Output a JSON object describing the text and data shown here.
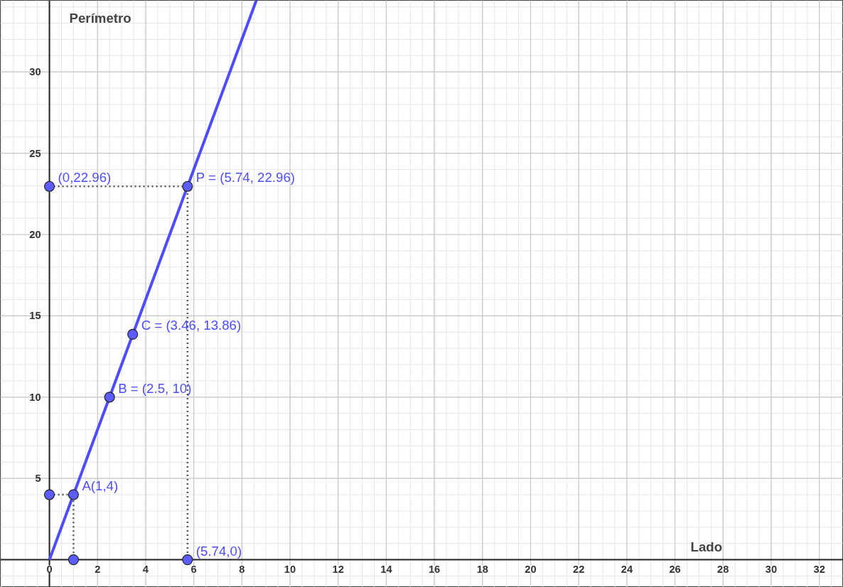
{
  "chart_data": {
    "type": "line",
    "xlabel": "Lado",
    "ylabel": "Perímetro",
    "xlim": [
      -2.04,
      33.0
    ],
    "ylim": [
      -1.7,
      34.4
    ],
    "xticks": [
      0,
      2,
      4,
      6,
      8,
      10,
      12,
      14,
      16,
      18,
      20,
      22,
      24,
      26,
      28,
      30,
      32
    ],
    "yticks": [
      5,
      10,
      15,
      20,
      25,
      30
    ],
    "grid": true,
    "marker": "none",
    "series": [
      {
        "color": "#4d4dff",
        "x": [
          0,
          8.6
        ],
        "values": [
          0,
          34.4
        ],
        "line_style": "solid"
      },
      {
        "color": "#555555",
        "x": [
          0,
          5.74,
          5.74
        ],
        "values": [
          22.96,
          22.96,
          0
        ],
        "line_style": "dotted"
      },
      {
        "color": "#555555",
        "x": [
          0,
          1,
          1
        ],
        "values": [
          4,
          4,
          0
        ],
        "line_style": "dotted"
      },
      {
        "type": "scatter",
        "color": "#5c5cff",
        "marker": "circle",
        "x": [
          0,
          5.74,
          3.46,
          2.5,
          1,
          0,
          1,
          5.74
        ],
        "values": [
          22.96,
          22.96,
          13.86,
          10,
          4,
          4,
          0,
          0
        ]
      }
    ],
    "annotations": [
      {
        "text": "(0,22.96)",
        "x": 0,
        "y": 22.96
      },
      {
        "text": "P = (5.74, 22.96)",
        "x": 5.74,
        "y": 22.96
      },
      {
        "text": "C = (3.46, 13.86)",
        "x": 3.46,
        "y": 13.86
      },
      {
        "text": "B = (2.5, 10)",
        "x": 2.5,
        "y": 10
      },
      {
        "text": "A(1,4)",
        "x": 1,
        "y": 4
      },
      {
        "text": "(5.74,0)",
        "x": 5.74,
        "y": 0
      }
    ]
  }
}
